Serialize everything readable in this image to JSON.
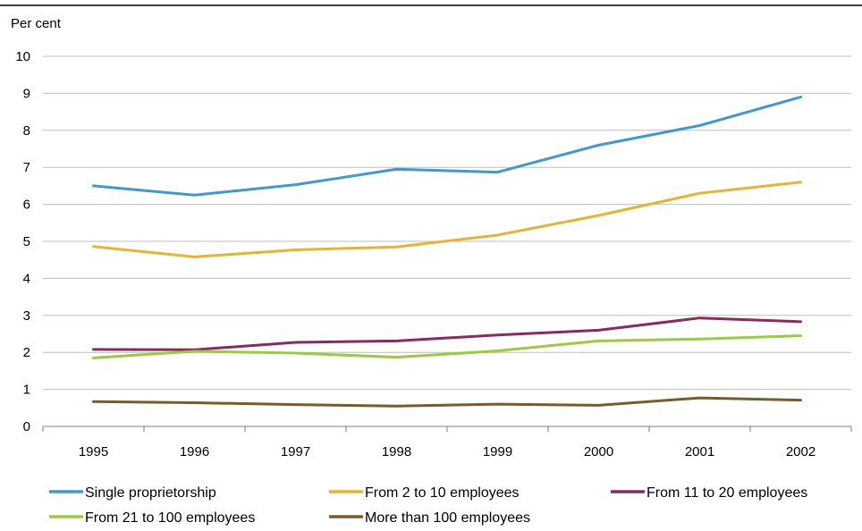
{
  "chart_data": {
    "type": "line",
    "ylabel": "Per cent",
    "x": [
      "1995",
      "1996",
      "1997",
      "1998",
      "1999",
      "2000",
      "2001",
      "2002"
    ],
    "ylim": [
      0,
      10
    ],
    "yticks": [
      "0",
      "1",
      "2",
      "3",
      "4",
      "5",
      "6",
      "7",
      "8",
      "9",
      "10"
    ],
    "grid": true,
    "legend_position": "bottom",
    "series": [
      {
        "name": "Single proprietorship",
        "color": "#3d9ad1",
        "values": [
          6.5,
          6.25,
          6.53,
          6.95,
          6.87,
          7.6,
          8.13,
          8.9
        ]
      },
      {
        "name": "From 2 to 10 employees",
        "color": "#e8b42d",
        "values": [
          4.86,
          4.58,
          4.77,
          4.85,
          5.17,
          5.7,
          6.3,
          6.6
        ]
      },
      {
        "name": "From 11 to 20 employees",
        "color": "#8c2a5e",
        "values": [
          2.08,
          2.07,
          2.27,
          2.31,
          2.47,
          2.6,
          2.93,
          2.83
        ]
      },
      {
        "name": "From 21 to 100 employees",
        "color": "#9ccb3b",
        "values": [
          1.85,
          2.03,
          1.98,
          1.87,
          2.04,
          2.31,
          2.36,
          2.45
        ]
      },
      {
        "name": "More than 100 employees",
        "color": "#7a5c26",
        "values": [
          0.67,
          0.64,
          0.59,
          0.55,
          0.6,
          0.57,
          0.77,
          0.71
        ]
      }
    ]
  }
}
